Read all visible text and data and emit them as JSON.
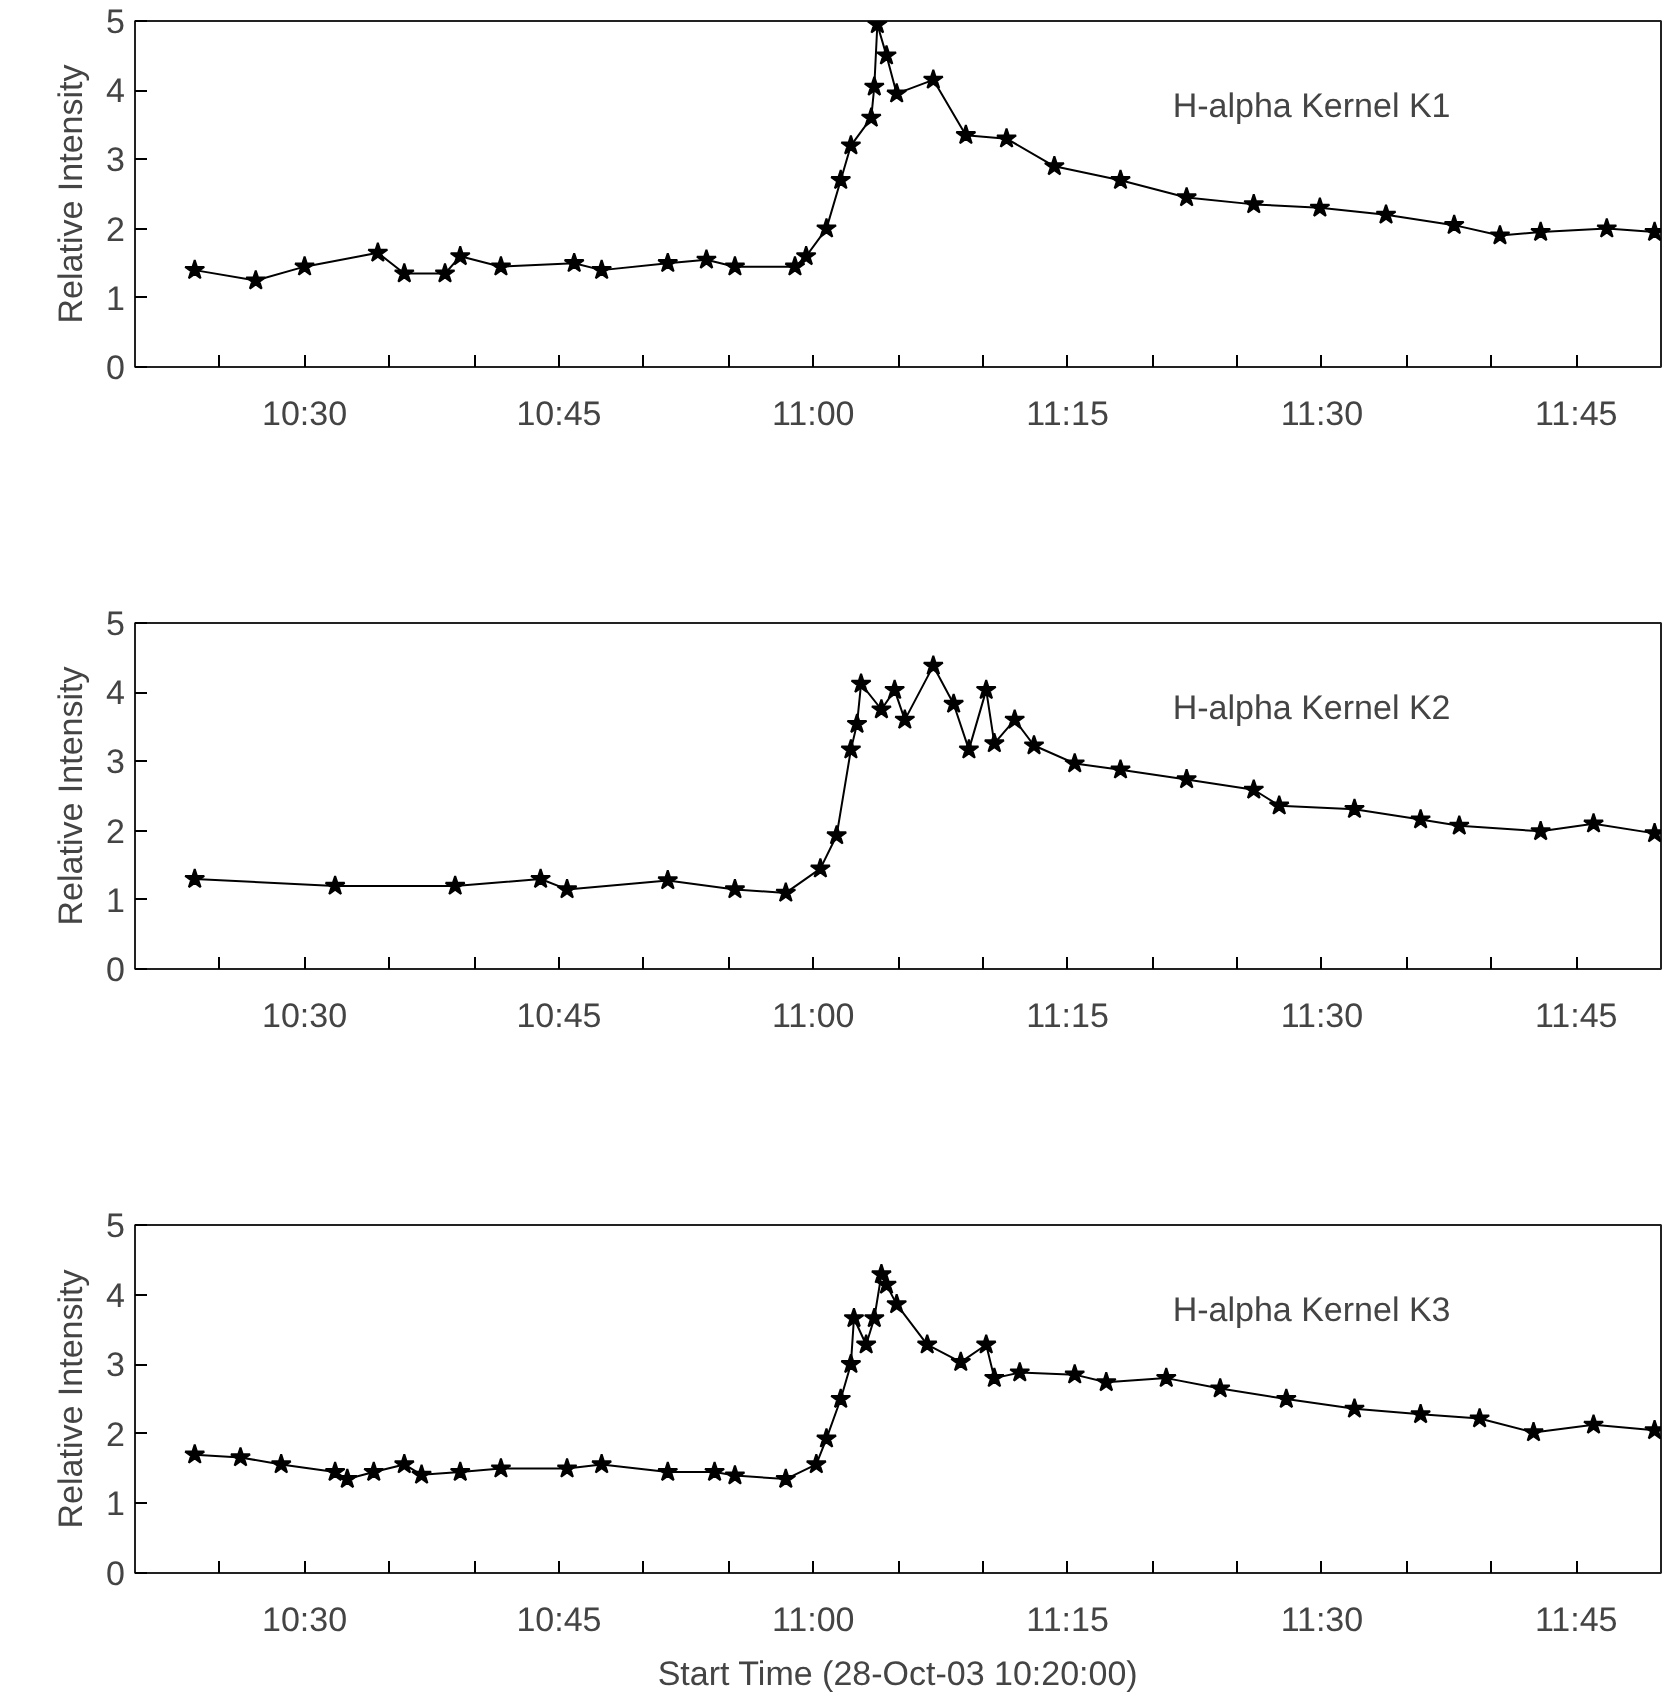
{
  "chart_data": [
    {
      "type": "line",
      "ylabel": "Relative Intensity",
      "annotations": [
        "H-alpha Kernel K1"
      ],
      "marker": "star",
      "line_style": "solid",
      "grid": false,
      "tick_labels": "xy",
      "xlim": [
        10.3333,
        11.8333
      ],
      "ylim": [
        0,
        5
      ],
      "yticks": [
        0,
        1,
        2,
        3,
        4,
        5
      ],
      "xticks": [
        {
          "value": 10.4167,
          "label": null
        },
        {
          "value": 10.5,
          "label": "10:30"
        },
        {
          "value": 10.5833,
          "label": null
        },
        {
          "value": 10.6667,
          "label": null
        },
        {
          "value": 10.75,
          "label": "10:45"
        },
        {
          "value": 10.8333,
          "label": null
        },
        {
          "value": 10.9167,
          "label": null
        },
        {
          "value": 11.0,
          "label": "11:00"
        },
        {
          "value": 11.0833,
          "label": null
        },
        {
          "value": 11.1667,
          "label": null
        },
        {
          "value": 11.25,
          "label": "11:15"
        },
        {
          "value": 11.3333,
          "label": null
        },
        {
          "value": 11.4167,
          "label": null
        },
        {
          "value": 11.5,
          "label": "11:30"
        },
        {
          "value": 11.5833,
          "label": null
        },
        {
          "value": 11.6667,
          "label": null
        },
        {
          "value": 11.75,
          "label": "11:45"
        }
      ],
      "series": [
        {
          "color": "#000000",
          "x": [
            10.392,
            10.452,
            10.5,
            10.572,
            10.598,
            10.638,
            10.653,
            10.693,
            10.765,
            10.792,
            10.857,
            10.895,
            10.923,
            10.982,
            10.993,
            11.013,
            11.027,
            11.037,
            11.057,
            11.06,
            11.063,
            11.072,
            11.082,
            11.118,
            11.15,
            11.19,
            11.237,
            11.302,
            11.367,
            11.433,
            11.498,
            11.563,
            11.63,
            11.675,
            11.715,
            11.78,
            11.827
          ],
          "values": [
            1.4,
            1.25,
            1.45,
            1.65,
            1.35,
            1.35,
            1.6,
            1.45,
            1.5,
            1.4,
            1.5,
            1.55,
            1.45,
            1.45,
            1.6,
            2.0,
            2.7,
            3.2,
            3.6,
            4.05,
            4.95,
            4.5,
            3.95,
            4.15,
            3.35,
            3.3,
            2.9,
            2.7,
            2.45,
            2.35,
            2.3,
            2.2,
            2.05,
            1.9,
            1.95,
            2.0,
            1.95
          ]
        }
      ]
    },
    {
      "type": "line",
      "ylabel": "Relative Intensity",
      "annotations": [
        "H-alpha Kernel K2"
      ],
      "marker": "star",
      "line_style": "solid",
      "grid": false,
      "tick_labels": "xy",
      "xlim": [
        10.3333,
        11.8333
      ],
      "ylim": [
        0,
        5
      ],
      "yticks": [
        0,
        1,
        2,
        3,
        4,
        5
      ],
      "xticks": [
        {
          "value": 10.4167,
          "label": null
        },
        {
          "value": 10.5,
          "label": "10:30"
        },
        {
          "value": 10.5833,
          "label": null
        },
        {
          "value": 10.6667,
          "label": null
        },
        {
          "value": 10.75,
          "label": "10:45"
        },
        {
          "value": 10.8333,
          "label": null
        },
        {
          "value": 10.9167,
          "label": null
        },
        {
          "value": 11.0,
          "label": "11:00"
        },
        {
          "value": 11.0833,
          "label": null
        },
        {
          "value": 11.1667,
          "label": null
        },
        {
          "value": 11.25,
          "label": "11:15"
        },
        {
          "value": 11.3333,
          "label": null
        },
        {
          "value": 11.4167,
          "label": null
        },
        {
          "value": 11.5,
          "label": "11:30"
        },
        {
          "value": 11.5833,
          "label": null
        },
        {
          "value": 11.6667,
          "label": null
        },
        {
          "value": 11.75,
          "label": "11:45"
        }
      ],
      "series": [
        {
          "color": "#000000",
          "x": [
            10.392,
            10.53,
            10.648,
            10.732,
            10.758,
            10.857,
            10.923,
            10.973,
            11.007,
            11.023,
            11.037,
            11.043,
            11.047,
            11.067,
            11.08,
            11.09,
            11.118,
            11.138,
            11.153,
            11.17,
            11.178,
            11.198,
            11.217,
            11.257,
            11.302,
            11.367,
            11.433,
            11.458,
            11.532,
            11.597,
            11.635,
            11.715,
            11.767,
            11.827
          ],
          "values": [
            1.3,
            1.2,
            1.2,
            1.3,
            1.15,
            1.28,
            1.15,
            1.1,
            1.45,
            1.93,
            3.17,
            3.54,
            4.12,
            3.75,
            4.03,
            3.6,
            4.38,
            3.83,
            3.17,
            4.03,
            3.26,
            3.6,
            3.23,
            2.97,
            2.88,
            2.74,
            2.59,
            2.36,
            2.31,
            2.16,
            2.07,
            1.99,
            2.1,
            1.96
          ]
        }
      ]
    },
    {
      "type": "line",
      "ylabel": "Relative Intensity",
      "xlabel": "Start Time (28-Oct-03 10:20:00)",
      "annotations": [
        "H-alpha Kernel K3"
      ],
      "marker": "star",
      "line_style": "solid",
      "grid": false,
      "tick_labels": "xy",
      "xlim": [
        10.3333,
        11.8333
      ],
      "ylim": [
        0,
        5
      ],
      "yticks": [
        0,
        1,
        2,
        3,
        4,
        5
      ],
      "xticks": [
        {
          "value": 10.4167,
          "label": null
        },
        {
          "value": 10.5,
          "label": "10:30"
        },
        {
          "value": 10.5833,
          "label": null
        },
        {
          "value": 10.6667,
          "label": null
        },
        {
          "value": 10.75,
          "label": "10:45"
        },
        {
          "value": 10.8333,
          "label": null
        },
        {
          "value": 10.9167,
          "label": null
        },
        {
          "value": 11.0,
          "label": "11:00"
        },
        {
          "value": 11.0833,
          "label": null
        },
        {
          "value": 11.1667,
          "label": null
        },
        {
          "value": 11.25,
          "label": "11:15"
        },
        {
          "value": 11.3333,
          "label": null
        },
        {
          "value": 11.4167,
          "label": null
        },
        {
          "value": 11.5,
          "label": "11:30"
        },
        {
          "value": 11.5833,
          "label": null
        },
        {
          "value": 11.6667,
          "label": null
        },
        {
          "value": 11.75,
          "label": "11:45"
        }
      ],
      "series": [
        {
          "color": "#000000",
          "x": [
            10.392,
            10.437,
            10.477,
            10.53,
            10.542,
            10.568,
            10.598,
            10.615,
            10.653,
            10.693,
            10.758,
            10.792,
            10.857,
            10.903,
            10.923,
            10.973,
            11.003,
            11.013,
            11.027,
            11.037,
            11.04,
            11.052,
            11.06,
            11.067,
            11.072,
            11.082,
            11.112,
            11.145,
            11.17,
            11.178,
            11.203,
            11.257,
            11.288,
            11.347,
            11.4,
            11.465,
            11.532,
            11.597,
            11.655,
            11.708,
            11.767,
            11.827
          ],
          "values": [
            1.7,
            1.66,
            1.56,
            1.45,
            1.35,
            1.45,
            1.56,
            1.41,
            1.45,
            1.5,
            1.5,
            1.56,
            1.45,
            1.45,
            1.4,
            1.35,
            1.56,
            1.93,
            2.5,
            3.0,
            3.66,
            3.28,
            3.66,
            4.29,
            4.14,
            3.86,
            3.28,
            3.03,
            3.28,
            2.8,
            2.88,
            2.85,
            2.74,
            2.8,
            2.65,
            2.5,
            2.36,
            2.28,
            2.22,
            2.02,
            2.13,
            2.05
          ]
        }
      ]
    }
  ]
}
